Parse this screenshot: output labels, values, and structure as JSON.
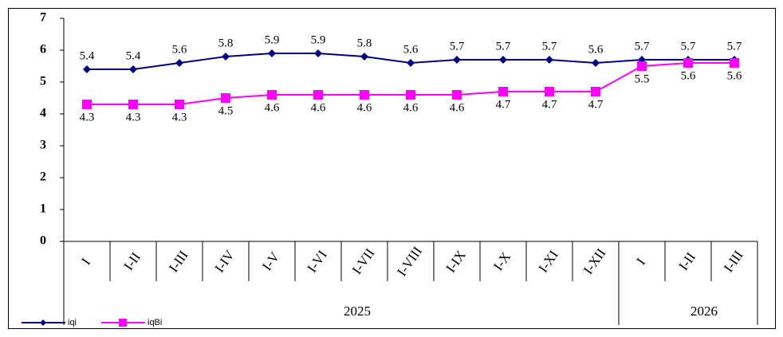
{
  "chart_data": {
    "type": "line",
    "categories": [
      "I",
      "I-II",
      "I-III",
      "I-IV",
      "I-V",
      "I-VI",
      "I-VII",
      "I-VIII",
      "I-IX",
      "I-X",
      "I-XI",
      "I-XII",
      "I",
      "I-II",
      "I-III"
    ],
    "groups": [
      {
        "label": "2025",
        "count": 12
      },
      {
        "label": "2026",
        "count": 3
      }
    ],
    "series": [
      {
        "name": "iqi",
        "color": "#000080",
        "marker": "diamond",
        "values": [
          5.4,
          5.4,
          5.6,
          5.8,
          5.9,
          5.9,
          5.8,
          5.6,
          5.7,
          5.7,
          5.7,
          5.6,
          5.7,
          5.7,
          5.7
        ]
      },
      {
        "name": "iqBi",
        "color": "#ff00ff",
        "marker": "square",
        "values": [
          4.3,
          4.3,
          4.3,
          4.5,
          4.6,
          4.6,
          4.6,
          4.6,
          4.6,
          4.7,
          4.7,
          4.7,
          5.5,
          5.6,
          5.6
        ]
      }
    ],
    "ylim": [
      0,
      7
    ],
    "yticks": [
      0,
      1,
      2,
      3,
      4,
      5,
      6,
      7
    ],
    "grid": false,
    "legend": "bottom-left"
  }
}
